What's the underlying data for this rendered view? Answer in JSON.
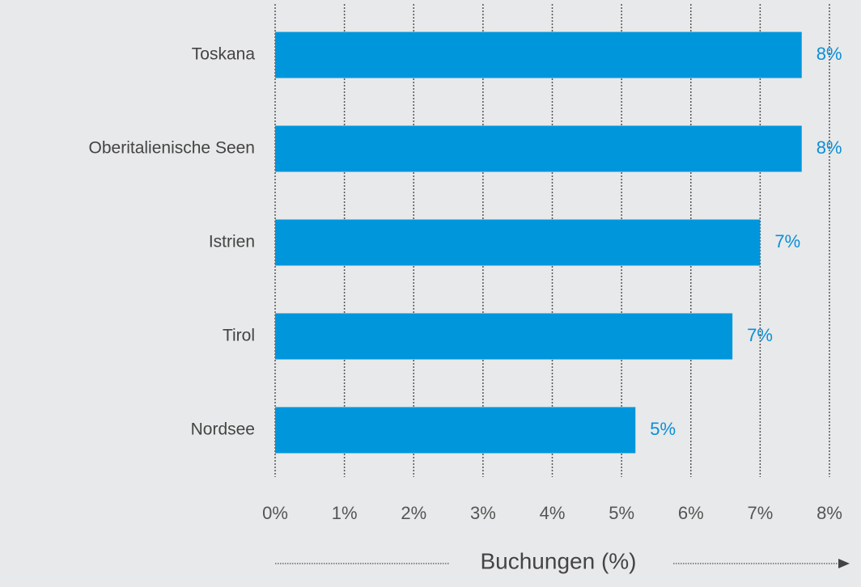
{
  "chart_data": {
    "type": "hbar",
    "categories": [
      "Toskana",
      "Oberitalienische Seen",
      "Istrien",
      "Tirol",
      "Nordsee"
    ],
    "values": [
      7.6,
      7.6,
      7.0,
      6.6,
      5.2
    ],
    "value_labels": [
      "8%",
      "8%",
      "7%",
      "7%",
      "5%"
    ],
    "color": "#0096dc",
    "xlabel": "Buchungen (%)",
    "xlim": [
      0,
      8
    ],
    "xticks": [
      {
        "value": 0,
        "label": "0%"
      },
      {
        "value": 1,
        "label": "1%"
      },
      {
        "value": 2,
        "label": "2%"
      },
      {
        "value": 3,
        "label": "3%"
      },
      {
        "value": 4,
        "label": "4%"
      },
      {
        "value": 5,
        "label": "5%"
      },
      {
        "value": 6,
        "label": "6%"
      },
      {
        "value": 7,
        "label": "7%"
      },
      {
        "value": 8,
        "label": "8%"
      }
    ],
    "grid": true
  }
}
